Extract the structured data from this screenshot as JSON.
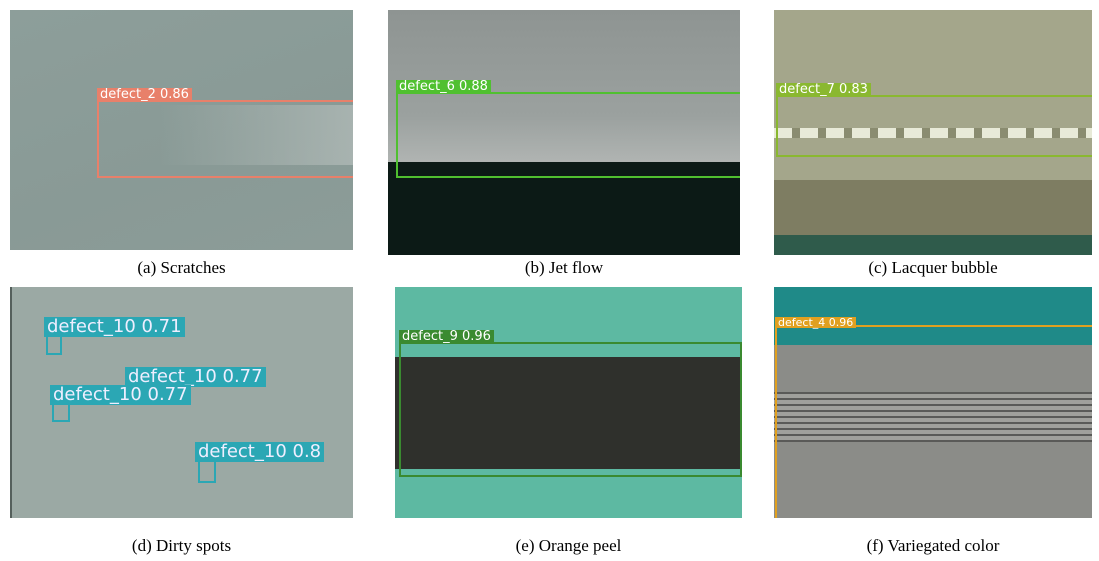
{
  "panels": [
    {
      "caption": "(a) Scratches",
      "detections": [
        {
          "label": "defect_2 0.86"
        }
      ]
    },
    {
      "caption": "(b) Jet flow",
      "detections": [
        {
          "label": "defect_6 0.88"
        }
      ]
    },
    {
      "caption": "(c) Lacquer bubble",
      "detections": [
        {
          "label": "defect_7 0.83"
        }
      ]
    },
    {
      "caption": "(d) Dirty spots",
      "detections": [
        {
          "label": "defect_10 0.71"
        },
        {
          "label": "defect_10 0.77"
        },
        {
          "label": "defect_10 0.77"
        },
        {
          "label": "defect_10 0.8"
        }
      ]
    },
    {
      "caption": "(e) Orange peel",
      "detections": [
        {
          "label": "defect_9 0.96"
        }
      ]
    },
    {
      "caption": "(f) Variegated color",
      "detections": [
        {
          "label": "defect_4 0.96"
        }
      ]
    }
  ]
}
